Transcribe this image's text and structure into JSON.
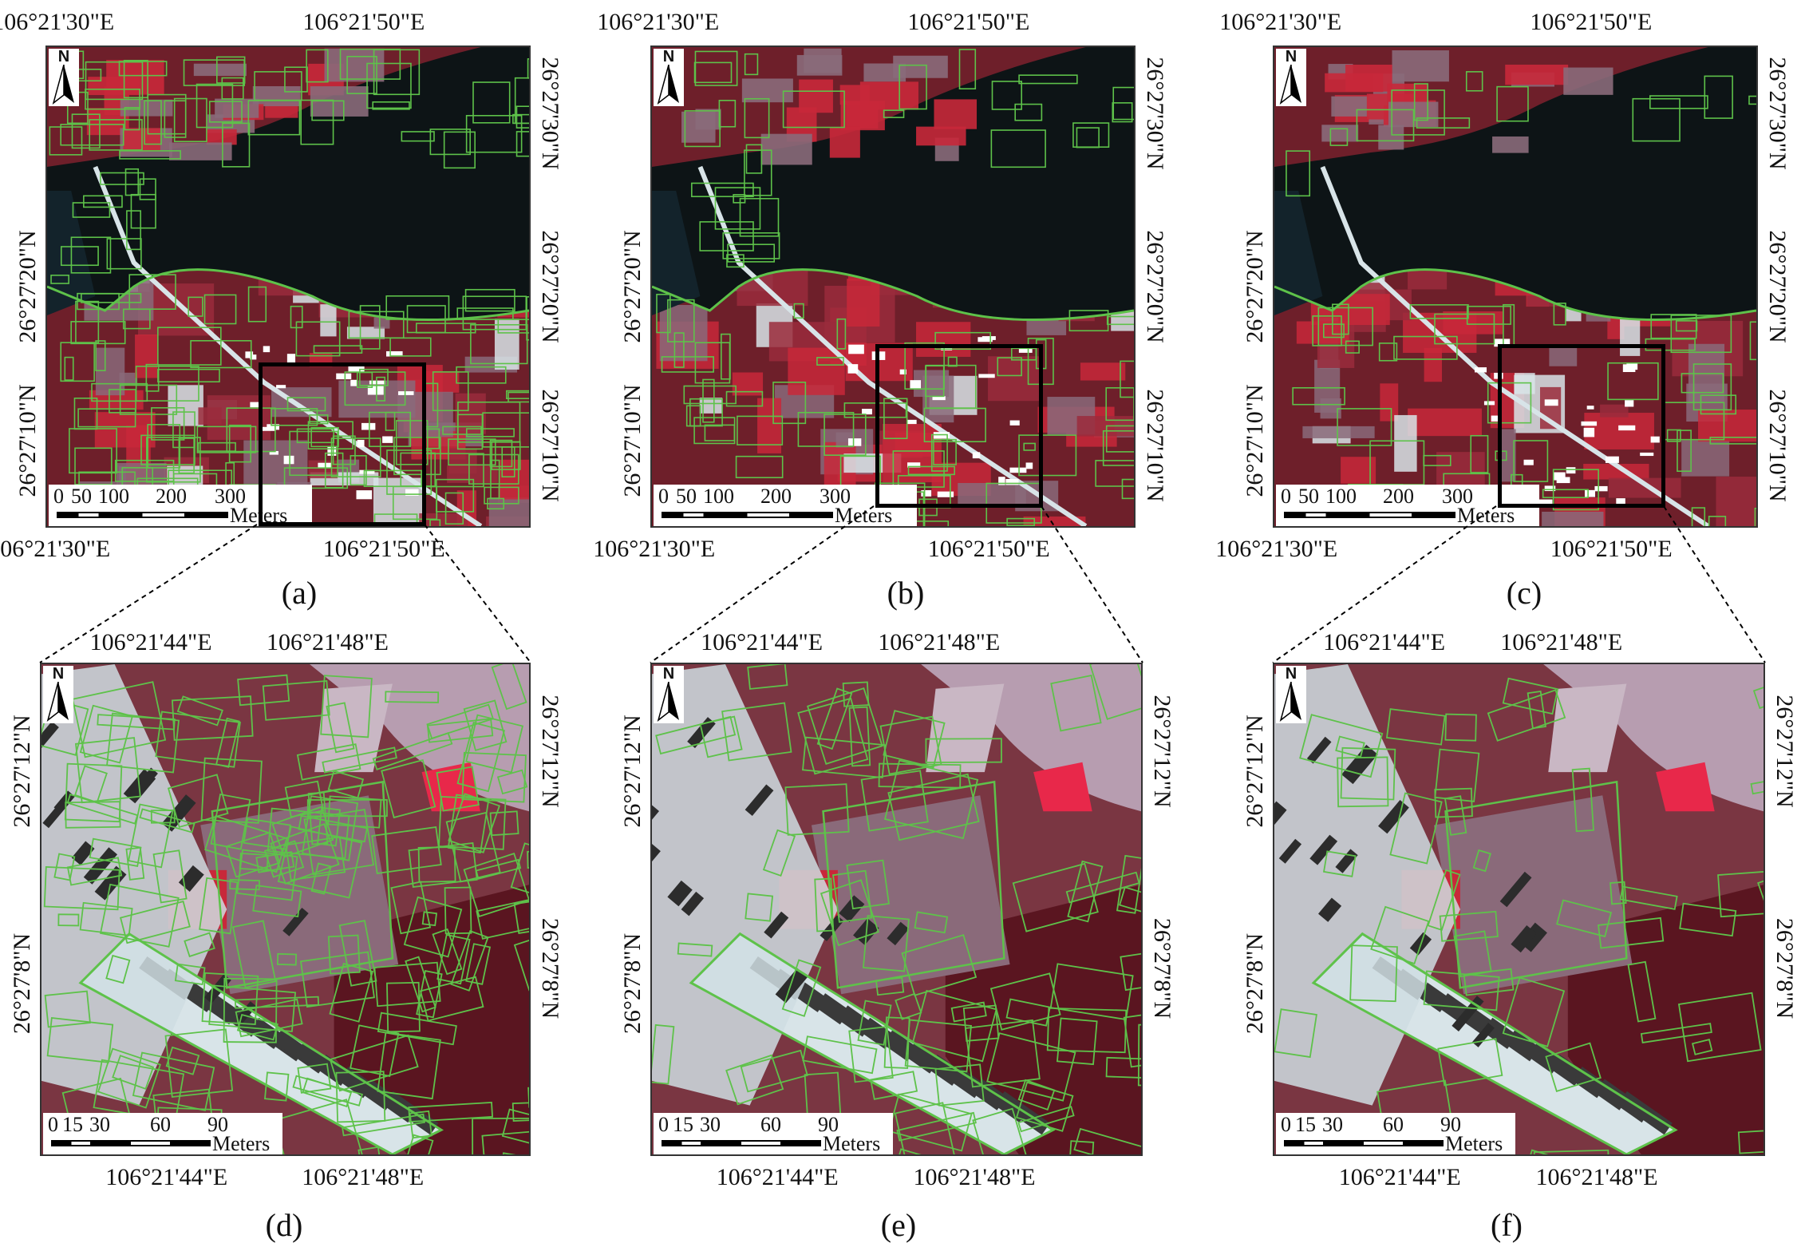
{
  "panels": [
    {
      "id": "a",
      "label": "(a)",
      "zoomed": false,
      "top_lon_labels": [
        "106°21'30\"E",
        "106°21'50\"E"
      ],
      "bottom_lon_labels": [
        "106°21'30\"E",
        "106°21'50\"E"
      ],
      "left_lat_labels": [
        "26°27'20\"N",
        "26°27'10\"N"
      ],
      "right_lat_labels": [
        "26°27'30\"N",
        "26°27'20\"N",
        "26°27'10\"N"
      ],
      "north": "N",
      "scale": {
        "ticks": [
          "0",
          "50",
          "100",
          "200",
          "300"
        ],
        "units": "Meters"
      }
    },
    {
      "id": "b",
      "label": "(b)",
      "zoomed": false,
      "top_lon_labels": [
        "106°21'30\"E",
        "106°21'50\"E"
      ],
      "bottom_lon_labels": [
        "106°21'30\"E",
        "106°21'50\"E"
      ],
      "left_lat_labels": [
        "26°27'20\"N",
        "26°27'10\"N"
      ],
      "right_lat_labels": [
        "26°27'30\"N",
        "26°27'20\"N",
        "26°27'10\"N"
      ],
      "north": "N",
      "scale": {
        "ticks": [
          "0",
          "50",
          "100",
          "200",
          "300"
        ],
        "units": "Meters"
      }
    },
    {
      "id": "c",
      "label": "(c)",
      "zoomed": false,
      "top_lon_labels": [
        "106°21'30\"E",
        "106°21'50\"E"
      ],
      "bottom_lon_labels": [
        "106°21'30\"E",
        "106°21'50\"E"
      ],
      "left_lat_labels": [
        "26°27'20\"N",
        "26°27'10\"N"
      ],
      "right_lat_labels": [
        "26°27'30\"N",
        "26°27'20\"N",
        "26°27'10\"N"
      ],
      "north": "N",
      "scale": {
        "ticks": [
          "0",
          "50",
          "100",
          "200",
          "300"
        ],
        "units": "Meters"
      }
    },
    {
      "id": "d",
      "label": "(d)",
      "zoomed": true,
      "top_lon_labels": [
        "106°21'44\"E",
        "106°21'48\"E"
      ],
      "bottom_lon_labels": [
        "106°21'44\"E",
        "106°21'48\"E"
      ],
      "left_lat_labels": [
        "26°27'12\"N",
        "26°27'8\"N"
      ],
      "right_lat_labels": [
        "26°27'12\"N",
        "26°27'8\"N"
      ],
      "north": "N",
      "scale": {
        "ticks": [
          "0",
          "15",
          "30",
          "60",
          "90"
        ],
        "units": "Meters"
      }
    },
    {
      "id": "e",
      "label": "(e)",
      "zoomed": true,
      "top_lon_labels": [
        "106°21'44\"E",
        "106°21'48\"E"
      ],
      "bottom_lon_labels": [
        "106°21'44\"E",
        "106°21'48\"E"
      ],
      "left_lat_labels": [
        "26°27'12\"N",
        "26°27'8\"N"
      ],
      "right_lat_labels": [
        "26°27'12\"N",
        "26°27'8\"N"
      ],
      "north": "N",
      "scale": {
        "ticks": [
          "0",
          "15",
          "30",
          "60",
          "90"
        ],
        "units": "Meters"
      }
    },
    {
      "id": "f",
      "label": "(f)",
      "zoomed": true,
      "top_lon_labels": [
        "106°21'44\"E",
        "106°21'48\"E"
      ],
      "bottom_lon_labels": [
        "106°21'44\"E",
        "106°21'48\"E"
      ],
      "left_lat_labels": [
        "26°27'12\"N",
        "26°27'8\"N"
      ],
      "right_lat_labels": [
        "26°27'12\"N",
        "26°27'8\"N"
      ],
      "north": "N",
      "scale": {
        "ticks": [
          "0",
          "15",
          "30",
          "60",
          "90"
        ],
        "units": "Meters"
      }
    }
  ],
  "colors": {
    "segment_outline": "#5ec24a",
    "water": "#0d1416",
    "vegetation_red": "#c8283a",
    "dark_vegetation": "#6e1f2a",
    "built_up": "#d8e4e8",
    "bare_mauve": "#8a6a7a",
    "frame": "#000000"
  }
}
